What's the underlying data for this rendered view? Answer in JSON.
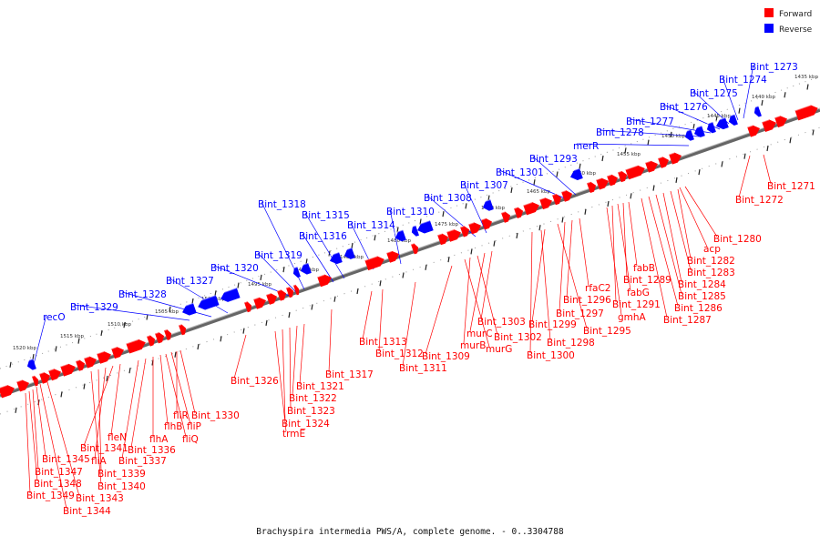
{
  "legend": {
    "forward_label": "Forward",
    "reverse_label": "Reverse",
    "forward_color": "#ff0000",
    "reverse_color": "#0000ff"
  },
  "caption": "Brachyspira intermedia PWS/A, complete genome. - 0..3304788",
  "backbone_color": "#888888",
  "ticks": [
    "1435 kbp",
    "1440 kbp",
    "1445 kbp",
    "1450 kbp",
    "1455 kbp",
    "1460 kbp",
    "1465 kbp",
    "1470 kbp",
    "1475 kbp",
    "1480 kbp",
    "1485 kbp",
    "1490 kbp",
    "1495 kbp",
    "1500 kbp",
    "1505 kbp",
    "1510 kbp",
    "1515 kbp",
    "1520 kbp"
  ],
  "forward_labels": [
    "Bint_1271",
    "Bint_1272",
    "Bint_1280",
    "acp",
    "Bint_1282",
    "Bint_1283",
    "Bint_1284",
    "Bint_1285",
    "Bint_1286",
    "Bint_1287",
    "fabB",
    "Bint_1289",
    "fabG",
    "Bint_1291",
    "gmhA",
    "rfaC2",
    "Bint_1296",
    "Bint_1297",
    "Bint_1295",
    "Bint_1299",
    "Bint_1298",
    "Bint_1300",
    "Bint_1303",
    "murC",
    "Bint_1302",
    "murB",
    "murG",
    "Bint_1309",
    "Bint_1313",
    "Bint_1312",
    "Bint_1311",
    "Bint_1317",
    "Bint_1321",
    "Bint_1322",
    "Bint_1323",
    "Bint_1324",
    "trmE",
    "Bint_1326",
    "Bint_1330",
    "fliR",
    "fliP",
    "fliQ",
    "flhB",
    "flhA",
    "Bint_1336",
    "Bint_1337",
    "fleN",
    "Bint_1341",
    "fliA",
    "Bint_1339",
    "Bint_1340",
    "Bint_1345",
    "Bint_1347",
    "Bint_1348",
    "Bint_1349",
    "Bint_1343",
    "Bint_1344"
  ],
  "reverse_labels": [
    "Bint_1273",
    "Bint_1274",
    "Bint_1275",
    "Bint_1276",
    "Bint_1277",
    "Bint_1278",
    "merR",
    "Bint_1293",
    "Bint_1301",
    "Bint_1307",
    "Bint_1308",
    "Bint_1310",
    "Bint_1314",
    "Bint_1315",
    "Bint_1316",
    "Bint_1318",
    "Bint_1319",
    "Bint_1320",
    "Bint_1327",
    "Bint_1328",
    "Bint_1329",
    "recO"
  ]
}
